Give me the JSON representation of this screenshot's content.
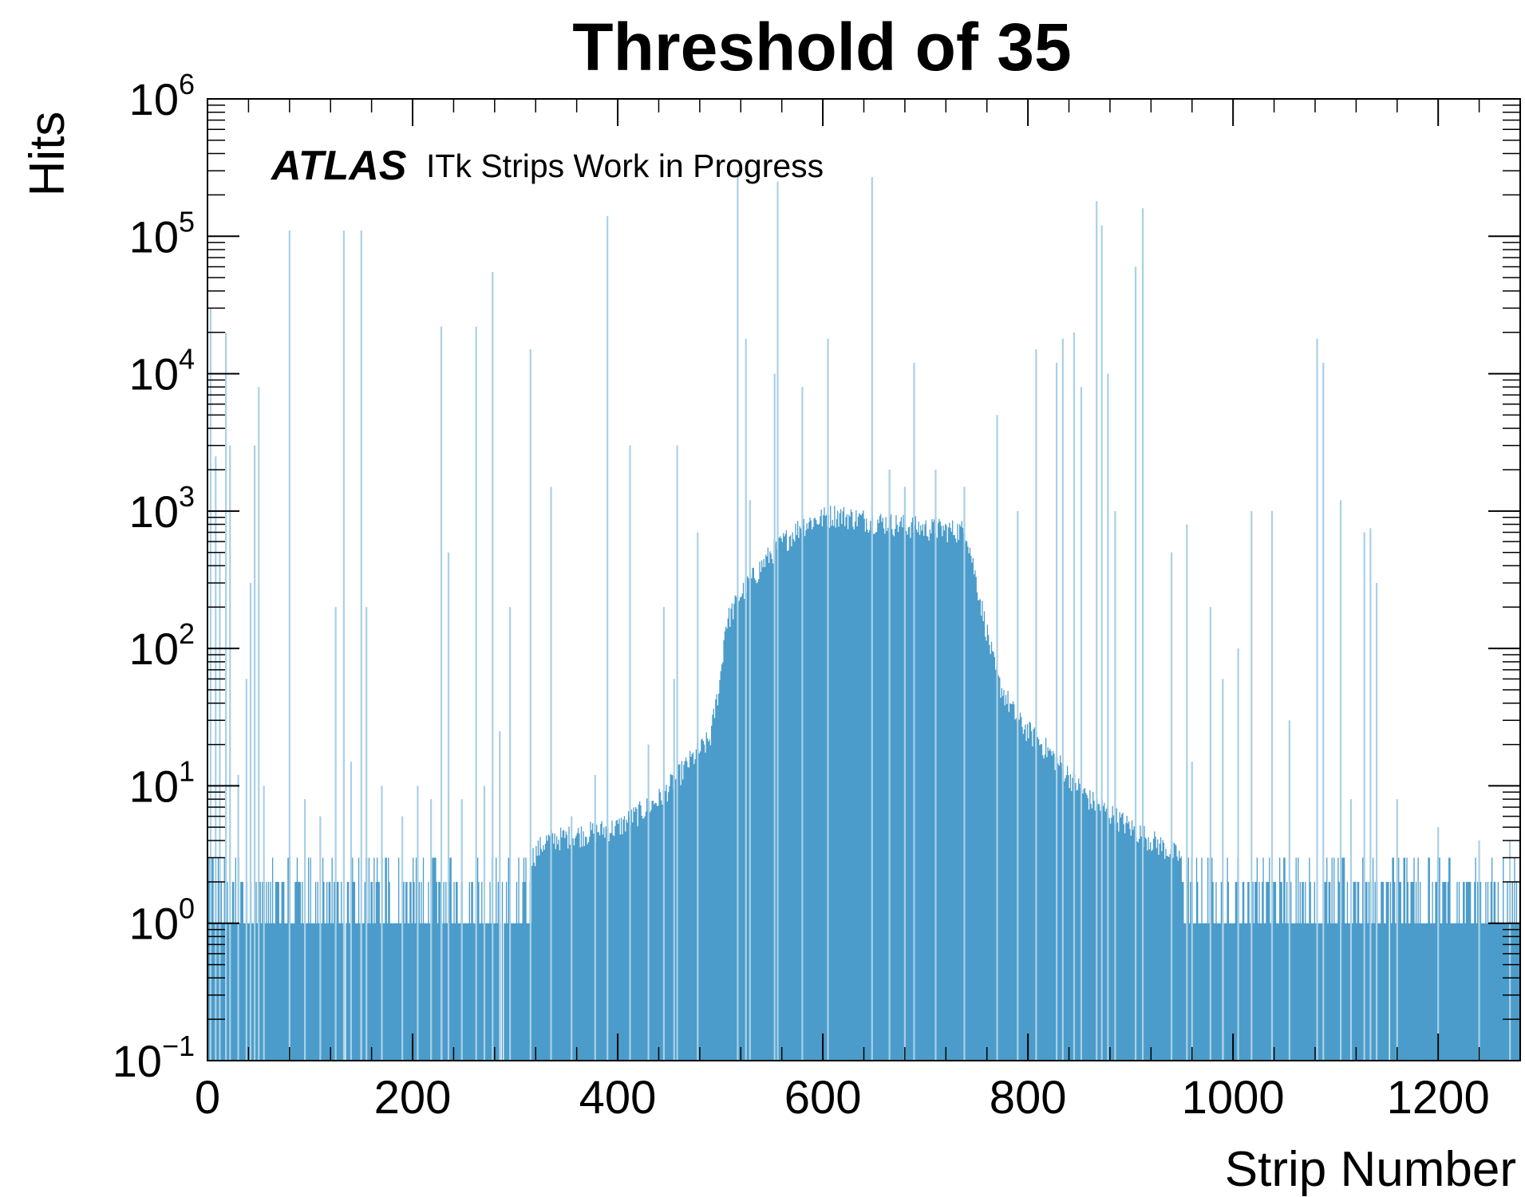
{
  "chart_data": {
    "type": "bar",
    "title": "Threshold of 35",
    "xlabel": "Strip Number",
    "ylabel": "Hits",
    "x_range": [
      0,
      1280
    ],
    "y_scale": "log",
    "ylim": [
      0.1,
      1000000
    ],
    "x_ticks": [
      0,
      200,
      400,
      600,
      800,
      1000,
      1200
    ],
    "x_tick_labels": [
      "0",
      "200",
      "400",
      "600",
      "800",
      "1000",
      "1200"
    ],
    "y_ticks": [
      {
        "base": "10",
        "exp": "−1",
        "value": 0.1
      },
      {
        "base": "10",
        "exp": "0",
        "value": 1
      },
      {
        "base": "10",
        "exp": "1",
        "value": 10
      },
      {
        "base": "10",
        "exp": "2",
        "value": 100
      },
      {
        "base": "10",
        "exp": "3",
        "value": 1000
      },
      {
        "base": "10",
        "exp": "4",
        "value": 10000
      },
      {
        "base": "10",
        "exp": "5",
        "value": 100000
      },
      {
        "base": "10",
        "exp": "6",
        "value": 1000000
      }
    ],
    "annotation": {
      "bold_italic": "ATLAS",
      "text": "ITk Strips Work in Progress"
    },
    "bar_color": "#4b9cca",
    "spike_color": "#a9d0e6",
    "baseline_profile": [
      {
        "x": 0,
        "y": 2.0
      },
      {
        "x": 300,
        "y": 2.2
      },
      {
        "x": 330,
        "y": 4
      },
      {
        "x": 400,
        "y": 5
      },
      {
        "x": 440,
        "y": 8
      },
      {
        "x": 470,
        "y": 15
      },
      {
        "x": 490,
        "y": 22
      },
      {
        "x": 500,
        "y": 60
      },
      {
        "x": 505,
        "y": 150
      },
      {
        "x": 520,
        "y": 250
      },
      {
        "x": 550,
        "y": 500
      },
      {
        "x": 580,
        "y": 800
      },
      {
        "x": 610,
        "y": 950
      },
      {
        "x": 650,
        "y": 850
      },
      {
        "x": 700,
        "y": 750
      },
      {
        "x": 740,
        "y": 720
      },
      {
        "x": 755,
        "y": 200
      },
      {
        "x": 770,
        "y": 60
      },
      {
        "x": 790,
        "y": 30
      },
      {
        "x": 820,
        "y": 18
      },
      {
        "x": 860,
        "y": 8
      },
      {
        "x": 900,
        "y": 5
      },
      {
        "x": 950,
        "y": 3
      },
      {
        "x": 1000,
        "y": 2.5
      },
      {
        "x": 1280,
        "y": 2.2
      }
    ],
    "spikes": [
      {
        "x": 3,
        "y": 30000
      },
      {
        "x": 8,
        "y": 2500
      },
      {
        "x": 12,
        "y": 500
      },
      {
        "x": 18,
        "y": 20000
      },
      {
        "x": 22,
        "y": 3000
      },
      {
        "x": 30,
        "y": 12
      },
      {
        "x": 38,
        "y": 60
      },
      {
        "x": 42,
        "y": 300
      },
      {
        "x": 46,
        "y": 3000
      },
      {
        "x": 50,
        "y": 8000
      },
      {
        "x": 55,
        "y": 10
      },
      {
        "x": 80,
        "y": 110000
      },
      {
        "x": 95,
        "y": 8
      },
      {
        "x": 110,
        "y": 6
      },
      {
        "x": 125,
        "y": 200
      },
      {
        "x": 133,
        "y": 110000
      },
      {
        "x": 140,
        "y": 15
      },
      {
        "x": 150,
        "y": 110000
      },
      {
        "x": 155,
        "y": 200
      },
      {
        "x": 170,
        "y": 10
      },
      {
        "x": 190,
        "y": 6
      },
      {
        "x": 205,
        "y": 10
      },
      {
        "x": 218,
        "y": 8
      },
      {
        "x": 228,
        "y": 22000
      },
      {
        "x": 235,
        "y": 500
      },
      {
        "x": 248,
        "y": 8
      },
      {
        "x": 262,
        "y": 22000
      },
      {
        "x": 270,
        "y": 10
      },
      {
        "x": 278,
        "y": 55000
      },
      {
        "x": 285,
        "y": 25
      },
      {
        "x": 295,
        "y": 200
      },
      {
        "x": 315,
        "y": 15000
      },
      {
        "x": 335,
        "y": 1500
      },
      {
        "x": 355,
        "y": 6
      },
      {
        "x": 378,
        "y": 12
      },
      {
        "x": 390,
        "y": 140000
      },
      {
        "x": 412,
        "y": 3000
      },
      {
        "x": 430,
        "y": 20
      },
      {
        "x": 445,
        "y": 200
      },
      {
        "x": 455,
        "y": 60
      },
      {
        "x": 458,
        "y": 3000
      },
      {
        "x": 478,
        "y": 700
      },
      {
        "x": 517,
        "y": 300000
      },
      {
        "x": 525,
        "y": 18000
      },
      {
        "x": 529,
        "y": 1200
      },
      {
        "x": 553,
        "y": 10000
      },
      {
        "x": 556,
        "y": 250000
      },
      {
        "x": 580,
        "y": 8000
      },
      {
        "x": 605,
        "y": 18000
      },
      {
        "x": 648,
        "y": 270000
      },
      {
        "x": 665,
        "y": 2000
      },
      {
        "x": 680,
        "y": 1500
      },
      {
        "x": 689,
        "y": 12000
      },
      {
        "x": 710,
        "y": 2000
      },
      {
        "x": 738,
        "y": 1500
      },
      {
        "x": 770,
        "y": 5000
      },
      {
        "x": 790,
        "y": 1000
      },
      {
        "x": 808,
        "y": 15000
      },
      {
        "x": 828,
        "y": 12000
      },
      {
        "x": 834,
        "y": 18000
      },
      {
        "x": 845,
        "y": 20000
      },
      {
        "x": 852,
        "y": 8000
      },
      {
        "x": 867,
        "y": 180000
      },
      {
        "x": 872,
        "y": 120000
      },
      {
        "x": 878,
        "y": 10000
      },
      {
        "x": 885,
        "y": 1000
      },
      {
        "x": 905,
        "y": 60000
      },
      {
        "x": 912,
        "y": 160000
      },
      {
        "x": 940,
        "y": 500
      },
      {
        "x": 955,
        "y": 800
      },
      {
        "x": 960,
        "y": 15
      },
      {
        "x": 978,
        "y": 200
      },
      {
        "x": 990,
        "y": 60
      },
      {
        "x": 1005,
        "y": 100
      },
      {
        "x": 1018,
        "y": 1000
      },
      {
        "x": 1038,
        "y": 1000
      },
      {
        "x": 1055,
        "y": 30
      },
      {
        "x": 1082,
        "y": 18000
      },
      {
        "x": 1088,
        "y": 12000
      },
      {
        "x": 1105,
        "y": 1200
      },
      {
        "x": 1115,
        "y": 8
      },
      {
        "x": 1128,
        "y": 700
      },
      {
        "x": 1134,
        "y": 750
      },
      {
        "x": 1140,
        "y": 300
      },
      {
        "x": 1160,
        "y": 8
      },
      {
        "x": 1200,
        "y": 5
      },
      {
        "x": 1240,
        "y": 4
      },
      {
        "x": 1270,
        "y": 4
      }
    ],
    "gaps": [
      134,
      149,
      228,
      286,
      288,
      990,
      1152
    ]
  }
}
